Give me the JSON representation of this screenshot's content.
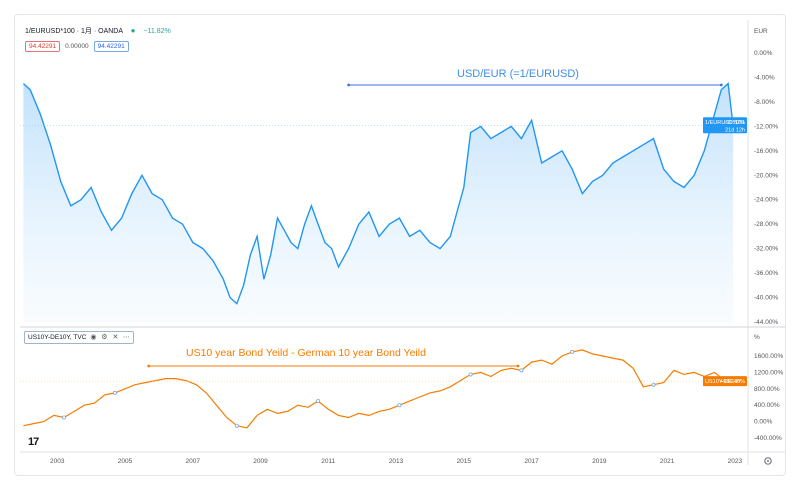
{
  "header": {
    "symbol": "1/EURUSD*100 · 1月 · OANDA",
    "change": "−11.82%",
    "open_box": "94.42291",
    "mid_box": "0.00000",
    "last_box": "94.42291"
  },
  "pane2_header": {
    "symbol": "US10Y-DE10Y, TVC",
    "eye_icon": "eye-icon",
    "gear_icon": "gear-icon",
    "more_icon": "more-icon"
  },
  "axes": {
    "top_unit": "EUR",
    "bottom_unit": "%",
    "x_labels": [
      "2003",
      "2005",
      "2007",
      "2009",
      "2011",
      "2013",
      "2015",
      "2017",
      "2019",
      "2021",
      "2023"
    ]
  },
  "badges": {
    "top_line1": "1/EURUSD*100",
    "top_value": "−11.82%",
    "top_time": "21d 12h",
    "bottom_line1": "US10Y-DE10Y",
    "bottom_value": "+986.40%"
  },
  "colors": {
    "blue": "#2196f3",
    "orange": "#f57c00",
    "fill_top": "#bbdefb"
  },
  "chart_data": [
    {
      "type": "area",
      "title": "USD/EUR (=1/EURUSD)",
      "ylabel": "EUR",
      "y_ticks": [
        "0.00%",
        "-4.00%",
        "-8.00%",
        "-12.00%",
        "-16.00%",
        "-20.00%",
        "-24.00%",
        "-28.00%",
        "-32.00%",
        "-36.00%",
        "-40.00%",
        "-44.00%"
      ],
      "ylim": [
        -44,
        0
      ],
      "x": [
        2002.0,
        2002.2,
        2002.5,
        2002.8,
        2003.1,
        2003.4,
        2003.7,
        2004.0,
        2004.3,
        2004.6,
        2004.9,
        2005.2,
        2005.5,
        2005.8,
        2006.1,
        2006.4,
        2006.7,
        2007.0,
        2007.3,
        2007.6,
        2007.9,
        2008.1,
        2008.3,
        2008.5,
        2008.7,
        2008.9,
        2009.1,
        2009.3,
        2009.5,
        2009.7,
        2009.9,
        2010.1,
        2010.3,
        2010.5,
        2010.7,
        2010.9,
        2011.1,
        2011.3,
        2011.6,
        2011.9,
        2012.2,
        2012.5,
        2012.8,
        2013.1,
        2013.4,
        2013.7,
        2014.0,
        2014.3,
        2014.6,
        2014.8,
        2015.0,
        2015.2,
        2015.5,
        2015.8,
        2016.1,
        2016.4,
        2016.7,
        2017.0,
        2017.3,
        2017.6,
        2017.9,
        2018.2,
        2018.5,
        2018.8,
        2019.1,
        2019.4,
        2019.7,
        2020.0,
        2020.3,
        2020.6,
        2020.9,
        2021.2,
        2021.5,
        2021.8,
        2022.1,
        2022.4,
        2022.6,
        2022.8,
        2022.95
      ],
      "values": [
        -5,
        -6,
        -10,
        -15,
        -21,
        -25,
        -24,
        -22,
        -26,
        -29,
        -27,
        -23,
        -20,
        -23,
        -24,
        -27,
        -28,
        -31,
        -32,
        -34,
        -37,
        -40,
        -41,
        -38,
        -33,
        -30,
        -37,
        -33,
        -27,
        -29,
        -31,
        -32,
        -28,
        -25,
        -28,
        -31,
        -32,
        -35,
        -32,
        -28,
        -26,
        -30,
        -28,
        -27,
        -30,
        -29,
        -31,
        -32,
        -30,
        -26,
        -22,
        -13,
        -12,
        -14,
        -13,
        -12,
        -14,
        -11,
        -18,
        -17,
        -16,
        -19,
        -23,
        -21,
        -20,
        -18,
        -17,
        -16,
        -15,
        -14,
        -19,
        -21,
        -22,
        -20,
        -16,
        -10,
        -6,
        -5,
        -11.82
      ]
    },
    {
      "type": "line",
      "title": "US10 year Bond Yeild - German 10 year Bond Yeild",
      "ylabel": "%",
      "y_ticks": [
        "1600.00%",
        "1200.00%",
        "800.00%",
        "400.00%",
        "0.00%",
        "-400.00%"
      ],
      "ylim": [
        -400,
        1600
      ],
      "x": [
        2002.0,
        2002.3,
        2002.6,
        2002.9,
        2003.2,
        2003.5,
        2003.8,
        2004.1,
        2004.4,
        2004.7,
        2005.0,
        2005.3,
        2005.6,
        2005.9,
        2006.2,
        2006.5,
        2006.8,
        2007.1,
        2007.4,
        2007.7,
        2008.0,
        2008.3,
        2008.6,
        2008.9,
        2009.2,
        2009.5,
        2009.8,
        2010.1,
        2010.4,
        2010.7,
        2011.0,
        2011.3,
        2011.6,
        2011.9,
        2012.2,
        2012.5,
        2012.8,
        2013.1,
        2013.4,
        2013.7,
        2014.0,
        2014.3,
        2014.6,
        2014.9,
        2015.2,
        2015.5,
        2015.8,
        2016.1,
        2016.4,
        2016.7,
        2017.0,
        2017.3,
        2017.6,
        2017.9,
        2018.2,
        2018.5,
        2018.8,
        2019.1,
        2019.4,
        2019.7,
        2020.0,
        2020.3,
        2020.6,
        2020.9,
        2021.2,
        2021.5,
        2021.8,
        2022.1,
        2022.4,
        2022.7,
        2022.95
      ],
      "values": [
        -100,
        -50,
        0,
        150,
        100,
        250,
        400,
        450,
        650,
        700,
        800,
        900,
        950,
        1000,
        1050,
        1050,
        1000,
        900,
        700,
        400,
        100,
        -100,
        -150,
        150,
        300,
        200,
        250,
        400,
        350,
        500,
        300,
        150,
        100,
        200,
        150,
        250,
        300,
        400,
        500,
        600,
        700,
        750,
        850,
        1000,
        1150,
        1200,
        1100,
        1250,
        1300,
        1250,
        1450,
        1500,
        1400,
        1600,
        1700,
        1750,
        1650,
        1600,
        1550,
        1500,
        1300,
        850,
        900,
        950,
        1250,
        1150,
        1200,
        1100,
        1200,
        1000,
        986.4
      ]
    }
  ]
}
